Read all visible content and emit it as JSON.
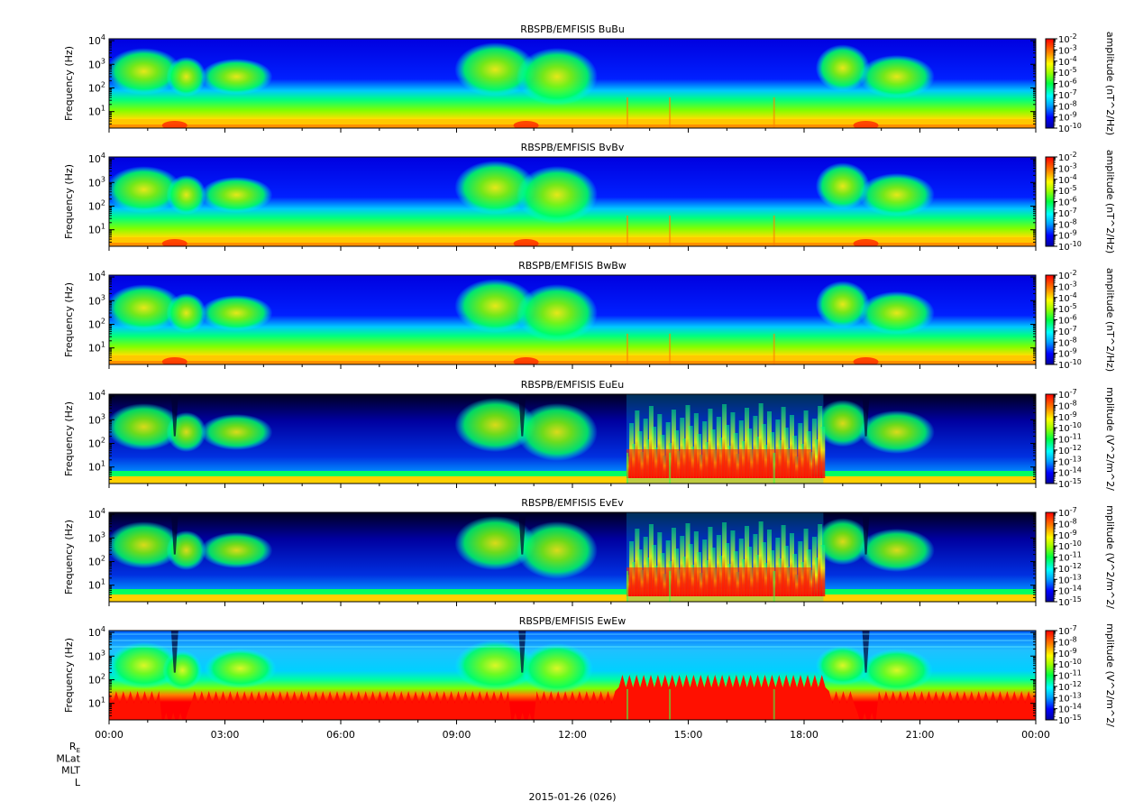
{
  "chart_data": [
    {
      "type": "heatmap",
      "title": "RBSPB/EMFISIS  BuBu",
      "ylabel": "Frequency (Hz)",
      "yscale": "log",
      "ylim": [
        2,
        12000
      ],
      "y_ticks": [
        {
          "base": "10",
          "exp": "4"
        },
        {
          "base": "10",
          "exp": "3"
        },
        {
          "base": "10",
          "exp": "2"
        },
        {
          "base": "10",
          "exp": "1"
        }
      ],
      "colorbar": {
        "label": "amplitude (nT^2/Hz)",
        "exps": [
          "-2",
          "-3",
          "-4",
          "-5",
          "-6",
          "-7",
          "-8",
          "-9",
          "-10"
        ],
        "range_exp": [
          -10,
          -2
        ]
      },
      "kind": "B"
    },
    {
      "type": "heatmap",
      "title": "RBSPB/EMFISIS  BvBv",
      "ylabel": "Frequency (Hz)",
      "yscale": "log",
      "ylim": [
        2,
        12000
      ],
      "y_ticks": [
        {
          "base": "10",
          "exp": "4"
        },
        {
          "base": "10",
          "exp": "3"
        },
        {
          "base": "10",
          "exp": "2"
        },
        {
          "base": "10",
          "exp": "1"
        }
      ],
      "colorbar": {
        "label": "amplitude (nT^2/Hz)",
        "exps": [
          "-2",
          "-3",
          "-4",
          "-5",
          "-6",
          "-7",
          "-8",
          "-9",
          "-10"
        ],
        "range_exp": [
          -10,
          -2
        ]
      },
      "kind": "B"
    },
    {
      "type": "heatmap",
      "title": "RBSPB/EMFISIS  BwBw",
      "ylabel": "Frequency (Hz)",
      "yscale": "log",
      "ylim": [
        2,
        12000
      ],
      "y_ticks": [
        {
          "base": "10",
          "exp": "4"
        },
        {
          "base": "10",
          "exp": "3"
        },
        {
          "base": "10",
          "exp": "2"
        },
        {
          "base": "10",
          "exp": "1"
        }
      ],
      "colorbar": {
        "label": "amplitude (nT^2/Hz)",
        "exps": [
          "-2",
          "-3",
          "-4",
          "-5",
          "-6",
          "-7",
          "-8",
          "-9",
          "-10"
        ],
        "range_exp": [
          -10,
          -2
        ]
      },
      "kind": "B"
    },
    {
      "type": "heatmap",
      "title": "RBSPB/EMFISIS  EuEu",
      "ylabel": "Frequency (Hz)",
      "yscale": "log",
      "ylim": [
        2,
        12000
      ],
      "y_ticks": [
        {
          "base": "10",
          "exp": "4"
        },
        {
          "base": "10",
          "exp": "3"
        },
        {
          "base": "10",
          "exp": "2"
        },
        {
          "base": "10",
          "exp": "1"
        }
      ],
      "colorbar": {
        "label": "mplitude (V^2/m^2/",
        "exps": [
          "-7",
          "-8",
          "-9",
          "-10",
          "-11",
          "-12",
          "-13",
          "-14",
          "-15"
        ],
        "range_exp": [
          -15,
          -7
        ]
      },
      "kind": "E"
    },
    {
      "type": "heatmap",
      "title": "RBSPB/EMFISIS  EvEv",
      "ylabel": "Frequency (Hz)",
      "yscale": "log",
      "ylim": [
        2,
        12000
      ],
      "y_ticks": [
        {
          "base": "10",
          "exp": "4"
        },
        {
          "base": "10",
          "exp": "3"
        },
        {
          "base": "10",
          "exp": "2"
        },
        {
          "base": "10",
          "exp": "1"
        }
      ],
      "colorbar": {
        "label": "mplitude (V^2/m^2/",
        "exps": [
          "-7",
          "-8",
          "-9",
          "-10",
          "-11",
          "-12",
          "-13",
          "-14",
          "-15"
        ],
        "range_exp": [
          -15,
          -7
        ]
      },
      "kind": "E"
    },
    {
      "type": "heatmap",
      "title": "RBSPB/EMFISIS  EwEw",
      "ylabel": "Frequency (Hz)",
      "yscale": "log",
      "ylim": [
        2,
        12000
      ],
      "y_ticks": [
        {
          "base": "10",
          "exp": "4"
        },
        {
          "base": "10",
          "exp": "3"
        },
        {
          "base": "10",
          "exp": "2"
        },
        {
          "base": "10",
          "exp": "1"
        }
      ],
      "colorbar": {
        "label": "mplitude (V^2/m^2/",
        "exps": [
          "-7",
          "-8",
          "-9",
          "-10",
          "-11",
          "-12",
          "-13",
          "-14",
          "-15"
        ],
        "range_exp": [
          -15,
          -7
        ]
      },
      "kind": "Ew"
    }
  ],
  "x_axis": {
    "ticks": [
      "00:00",
      "03:00",
      "06:00",
      "09:00",
      "12:00",
      "15:00",
      "18:00",
      "21:00",
      "00:00"
    ],
    "ephemeris_labels": [
      {
        "base": "R",
        "sub": "E"
      },
      {
        "base": "MLat",
        "sub": ""
      },
      {
        "base": "MLT",
        "sub": ""
      },
      {
        "base": "L",
        "sub": ""
      }
    ],
    "date_label": "2015-01-26 (026)"
  }
}
